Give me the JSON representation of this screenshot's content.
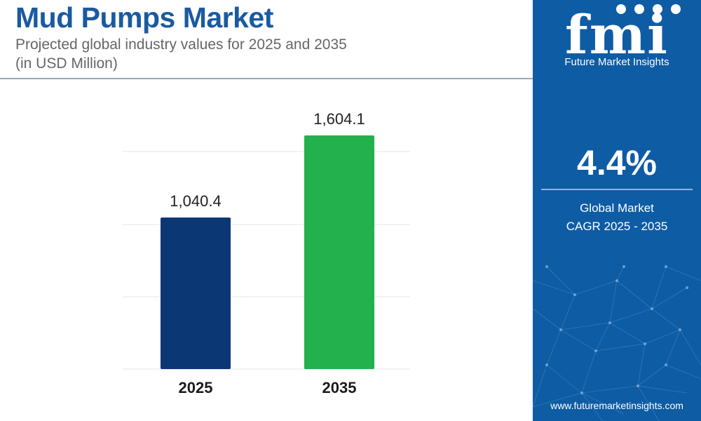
{
  "header": {
    "title": "Mud Pumps Market",
    "subtitle_line1": "Projected global industry values for 2025 and 2035",
    "subtitle_line2": "(in USD Million)"
  },
  "chart_data": {
    "type": "bar",
    "title": "Mud Pumps Market",
    "subtitle": "Projected global industry values for 2025 and 2035 (in USD Million)",
    "categories": [
      "2025",
      "2035"
    ],
    "values": [
      1040.4,
      1604.1
    ],
    "value_labels": [
      "1,040.4",
      "1,604.1"
    ],
    "bar_colors": [
      "#0c3775",
      "#22b14c"
    ],
    "ylim": [
      0,
      1604.1
    ],
    "grid": true,
    "legend": "none"
  },
  "sidebar": {
    "brand_logo_text": "fmi",
    "brand_name": "Future Market Insights",
    "cagr_value": "4.4%",
    "cagr_label_line1": "Global Market",
    "cagr_label_line2": "CAGR 2025 - 2035",
    "url": "www.futuremarketinsights.com",
    "background_color": "#0e5ca4"
  }
}
